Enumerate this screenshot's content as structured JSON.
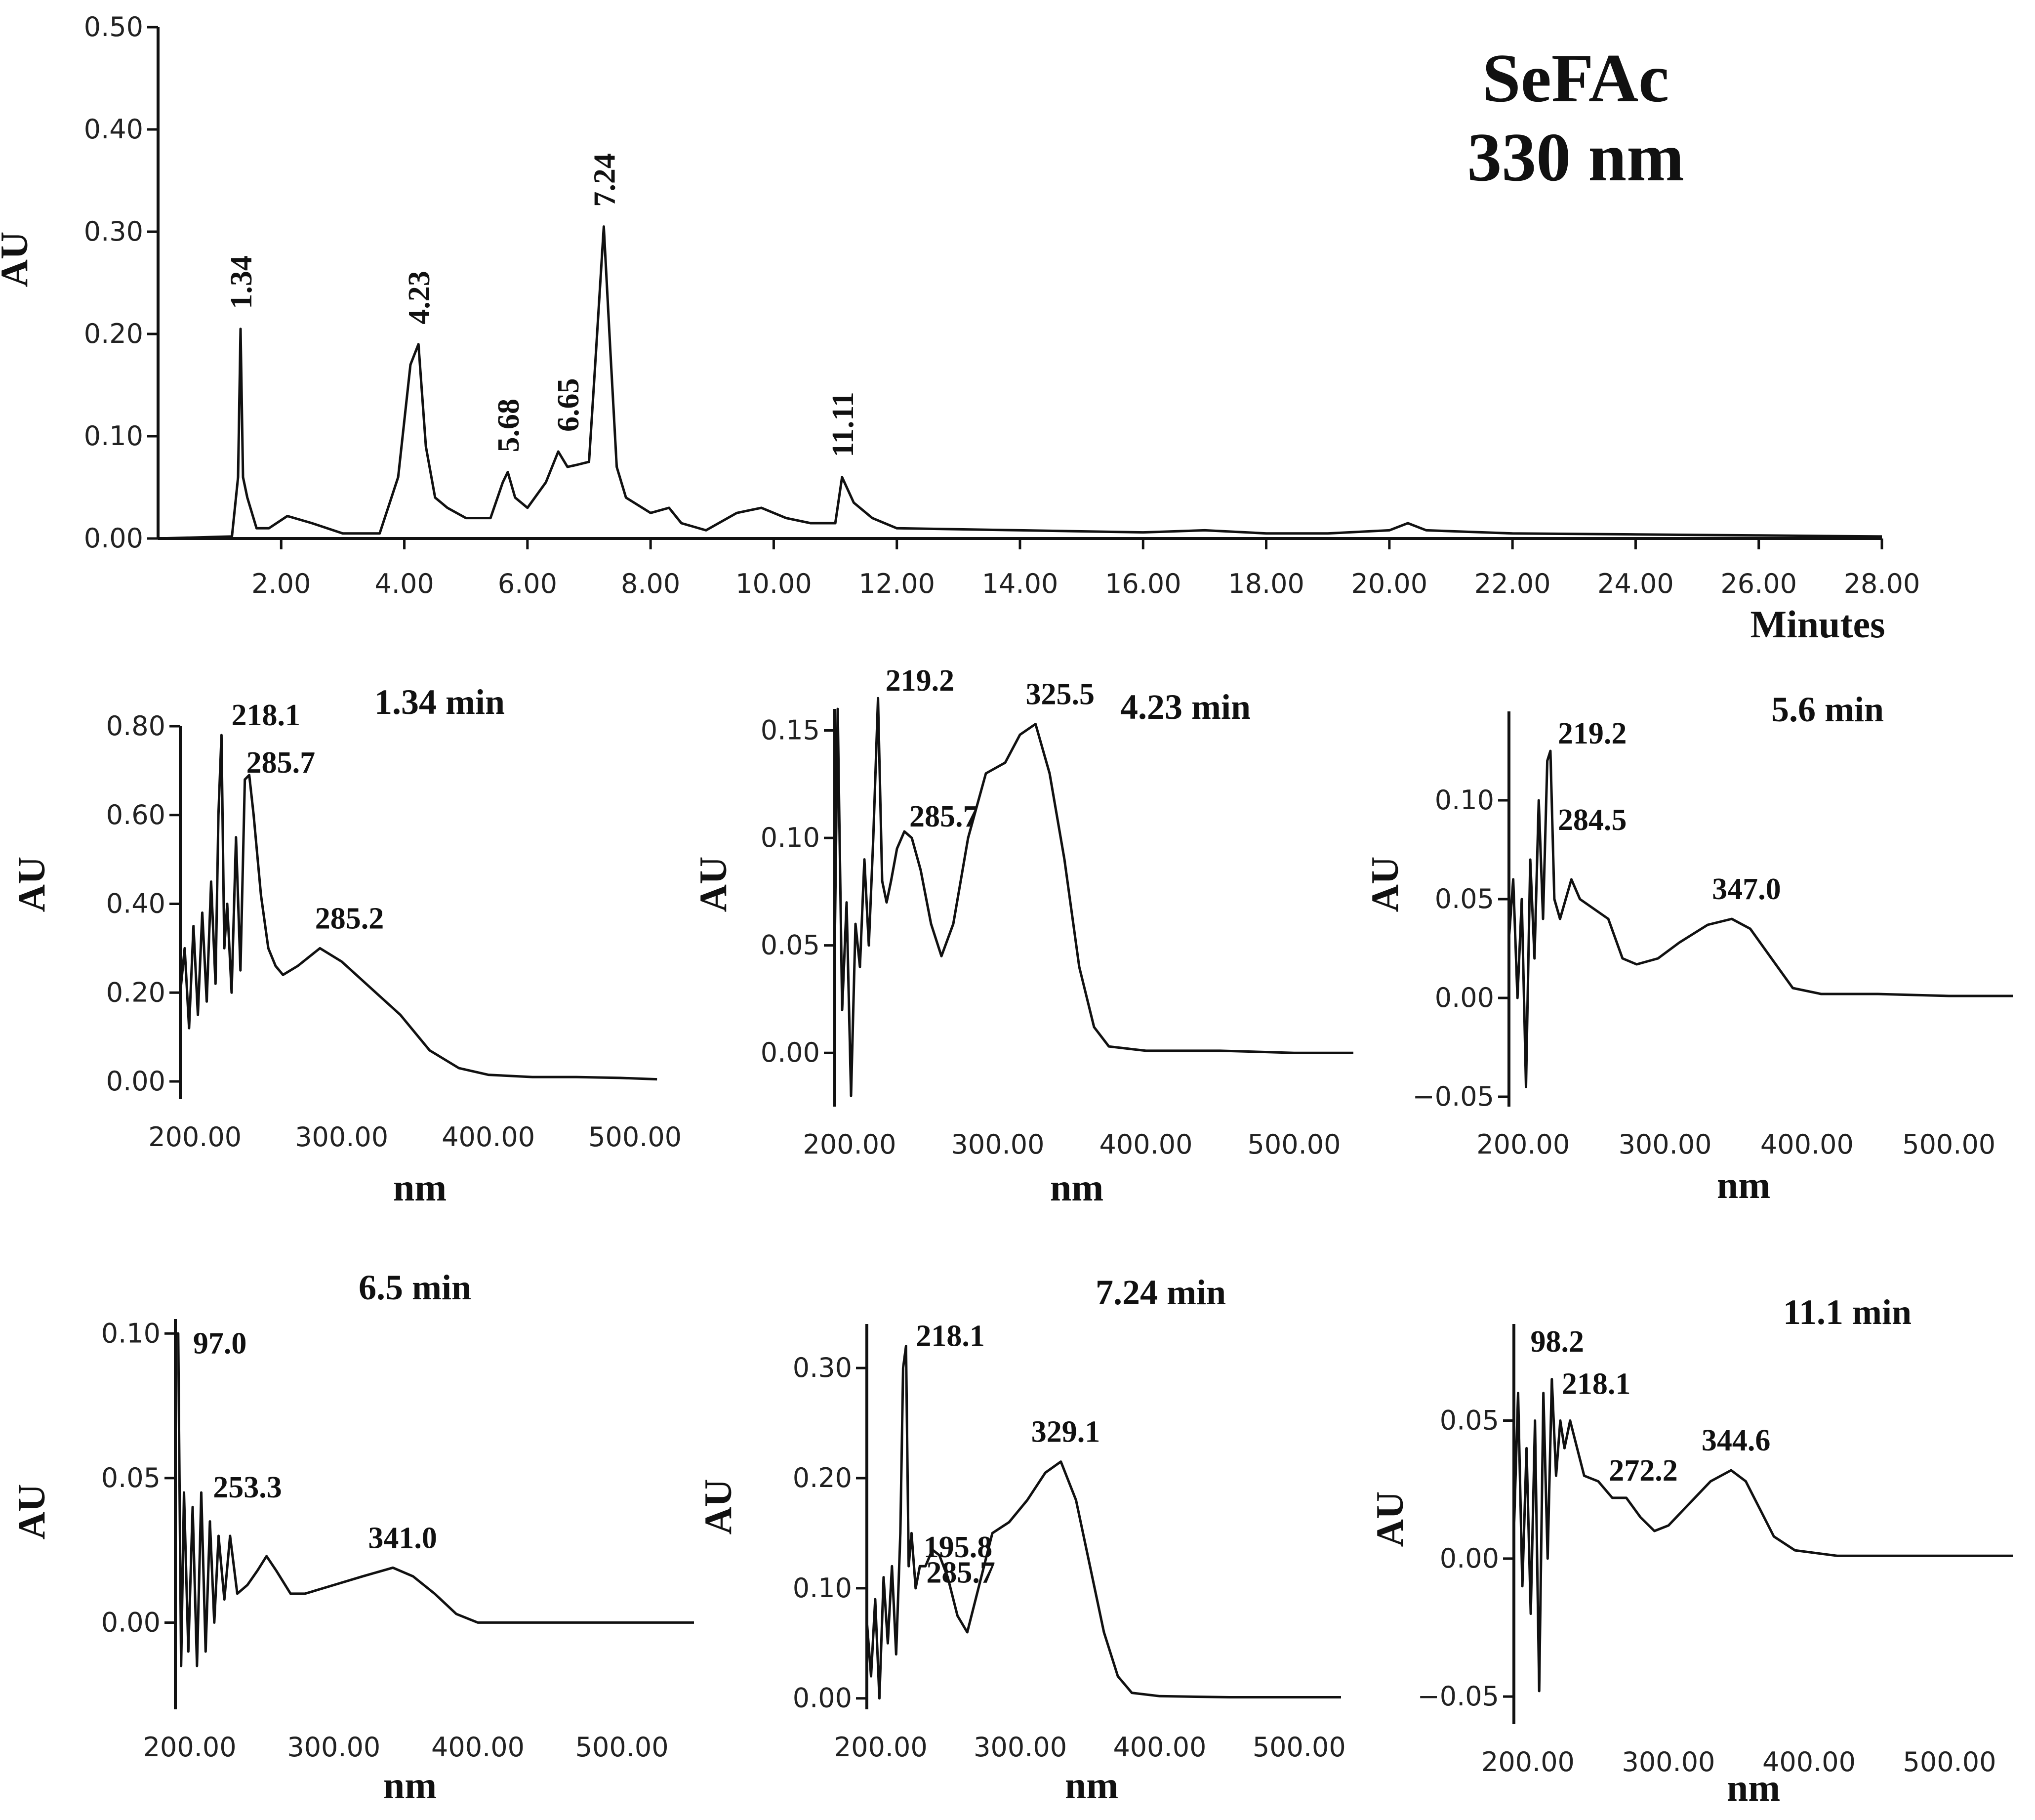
{
  "chart_data": [
    {
      "id": "chromatogram",
      "type": "line",
      "title": "SeFAc",
      "subtitle": "330 nm",
      "xlabel": "Minutes",
      "ylabel": "AU",
      "xlim": [
        0,
        28
      ],
      "ylim": [
        0,
        0.5
      ],
      "x_ticks": [
        2,
        4,
        6,
        8,
        10,
        12,
        14,
        16,
        18,
        20,
        22,
        24,
        26,
        28
      ],
      "x_tick_labels": [
        "2.00",
        "4.00",
        "6.00",
        "8.00",
        "10.00",
        "12.00",
        "14.00",
        "16.00",
        "18.00",
        "20.00",
        "22.00",
        "24.00",
        "26.00",
        "28.00"
      ],
      "y_ticks": [
        0,
        0.1,
        0.2,
        0.3,
        0.4,
        0.5
      ],
      "y_tick_labels": [
        "0.00",
        "0.10",
        "0.20",
        "0.30",
        "0.40",
        "0.50"
      ],
      "x": [
        0,
        1.2,
        1.3,
        1.34,
        1.38,
        1.45,
        1.6,
        1.8,
        2.1,
        2.5,
        3.0,
        3.6,
        3.9,
        4.1,
        4.23,
        4.35,
        4.5,
        4.7,
        5.0,
        5.4,
        5.6,
        5.68,
        5.8,
        6.0,
        6.3,
        6.5,
        6.65,
        6.8,
        7.0,
        7.1,
        7.24,
        7.35,
        7.45,
        7.6,
        8.0,
        8.3,
        8.5,
        8.9,
        9.4,
        9.8,
        10.2,
        10.6,
        11.0,
        11.11,
        11.3,
        11.6,
        12.0,
        14.0,
        16.0,
        17.0,
        18.0,
        19.0,
        20.0,
        20.3,
        20.6,
        22.0,
        24.0,
        26.0,
        28.0
      ],
      "y": [
        0,
        0.002,
        0.06,
        0.205,
        0.06,
        0.04,
        0.01,
        0.01,
        0.022,
        0.015,
        0.005,
        0.005,
        0.06,
        0.17,
        0.19,
        0.09,
        0.04,
        0.03,
        0.02,
        0.02,
        0.055,
        0.065,
        0.04,
        0.03,
        0.055,
        0.085,
        0.07,
        0.072,
        0.075,
        0.17,
        0.305,
        0.18,
        0.07,
        0.04,
        0.025,
        0.03,
        0.015,
        0.008,
        0.025,
        0.03,
        0.02,
        0.015,
        0.015,
        0.06,
        0.035,
        0.02,
        0.01,
        0.008,
        0.006,
        0.008,
        0.005,
        0.005,
        0.008,
        0.015,
        0.008,
        0.005,
        0.004,
        0.003,
        0.002
      ],
      "peaks": [
        {
          "x": 1.34,
          "y": 0.205,
          "label": "1.34"
        },
        {
          "x": 4.23,
          "y": 0.19,
          "label": "4.23"
        },
        {
          "x": 5.68,
          "y": 0.065,
          "label": "5.68"
        },
        {
          "x": 6.65,
          "y": 0.085,
          "label": "6.65"
        },
        {
          "x": 7.24,
          "y": 0.305,
          "label": "7.24"
        },
        {
          "x": 11.11,
          "y": 0.06,
          "label": "11.11"
        }
      ]
    },
    {
      "id": "spectrum-1-34",
      "type": "line",
      "title": "1.34 min",
      "xlabel": "nm",
      "ylabel": "AU",
      "xlim": [
        190,
        520
      ],
      "ylim": [
        -0.04,
        0.8
      ],
      "x_ticks": [
        200,
        300,
        400,
        500
      ],
      "x_tick_labels": [
        "200.00",
        "300.00",
        "400.00",
        "500.00"
      ],
      "y_ticks": [
        0,
        0.2,
        0.4,
        0.6,
        0.8
      ],
      "y_tick_labels": [
        "0.00",
        "0.20",
        "0.40",
        "0.60",
        "0.80"
      ],
      "x": [
        190,
        193,
        196,
        199,
        202,
        205,
        208,
        211,
        214,
        216,
        218.1,
        220,
        222,
        225,
        228,
        231,
        234,
        237,
        240,
        245,
        250,
        255,
        260,
        270,
        285.2,
        300,
        320,
        340,
        360,
        380,
        400,
        430,
        460,
        490,
        515
      ],
      "y": [
        0.2,
        0.3,
        0.12,
        0.35,
        0.15,
        0.38,
        0.18,
        0.45,
        0.22,
        0.6,
        0.78,
        0.3,
        0.4,
        0.2,
        0.55,
        0.25,
        0.68,
        0.69,
        0.6,
        0.42,
        0.3,
        0.26,
        0.24,
        0.26,
        0.3,
        0.27,
        0.21,
        0.15,
        0.07,
        0.03,
        0.015,
        0.01,
        0.01,
        0.008,
        0.005
      ],
      "annotations": [
        {
          "x": 218.1,
          "y": 0.78,
          "label": "218.1"
        },
        {
          "x": 235,
          "y": 0.69,
          "label": "285.7"
        },
        {
          "x": 285.2,
          "y": 0.3,
          "label": "285.2"
        }
      ]
    },
    {
      "id": "spectrum-4-23",
      "type": "line",
      "title": "4.23 min",
      "xlabel": "nm",
      "ylabel": "AU",
      "xlim": [
        190,
        540
      ],
      "ylim": [
        -0.025,
        0.16
      ],
      "x_ticks": [
        200,
        300,
        400,
        500
      ],
      "x_tick_labels": [
        "200.00",
        "300.00",
        "400.00",
        "500.00"
      ],
      "y_ticks": [
        0,
        0.05,
        0.1,
        0.15
      ],
      "y_tick_labels": [
        "0.00",
        "0.05",
        "0.10",
        "0.15"
      ],
      "x": [
        190,
        192,
        195,
        198,
        201,
        204,
        207,
        210,
        213,
        216,
        219.2,
        222,
        225,
        228,
        232,
        237,
        242,
        248,
        255,
        262,
        270,
        280,
        292,
        305,
        315,
        325.5,
        335,
        345,
        355,
        365,
        375,
        400,
        450,
        500,
        540
      ],
      "y": [
        0.05,
        0.16,
        0.02,
        0.07,
        -0.02,
        0.06,
        0.04,
        0.09,
        0.05,
        0.1,
        0.165,
        0.08,
        0.07,
        0.08,
        0.095,
        0.103,
        0.1,
        0.085,
        0.06,
        0.045,
        0.06,
        0.1,
        0.13,
        0.135,
        0.148,
        0.153,
        0.13,
        0.09,
        0.04,
        0.012,
        0.003,
        0.001,
        0.001,
        0.0,
        0.0
      ],
      "annotations": [
        {
          "x": 219.2,
          "y": 0.165,
          "label": "219.2"
        },
        {
          "x": 237,
          "y": 0.103,
          "label": "285.7"
        },
        {
          "x": 325.5,
          "y": 0.153,
          "label": "325.5"
        }
      ]
    },
    {
      "id": "spectrum-5-6",
      "type": "line",
      "title": "5.6  min",
      "xlabel": "nm",
      "ylabel": "AU",
      "xlim": [
        190,
        545
      ],
      "ylim": [
        -0.055,
        0.145
      ],
      "x_ticks": [
        200,
        300,
        400,
        500
      ],
      "x_tick_labels": [
        "200.00",
        "300.00",
        "400.00",
        "500.00"
      ],
      "y_ticks": [
        -0.05,
        0,
        0.05,
        0.1
      ],
      "y_tick_labels": [
        "−0.05",
        "0.00",
        "0.05",
        "0.10"
      ],
      "x": [
        190,
        193,
        196,
        199,
        202,
        205,
        208,
        211,
        214,
        217,
        219.2,
        222,
        226,
        230,
        234,
        240,
        250,
        260,
        270,
        280,
        295,
        310,
        330,
        347,
        360,
        375,
        390,
        410,
        450,
        500,
        545
      ],
      "y": [
        0.03,
        0.06,
        0.0,
        0.05,
        -0.045,
        0.07,
        0.02,
        0.1,
        0.04,
        0.12,
        0.125,
        0.05,
        0.04,
        0.05,
        0.06,
        0.05,
        0.045,
        0.04,
        0.02,
        0.017,
        0.02,
        0.028,
        0.037,
        0.04,
        0.035,
        0.02,
        0.005,
        0.002,
        0.002,
        0.001,
        0.001
      ],
      "annotations": [
        {
          "x": 219.2,
          "y": 0.125,
          "label": "219.2"
        },
        {
          "x": 219.2,
          "y": 0.11,
          "label": "284.5"
        },
        {
          "x": 347,
          "y": 0.04,
          "label": "347.0"
        }
      ]
    },
    {
      "id": "spectrum-6-5",
      "type": "line",
      "title": "6.5  min",
      "xlabel": "nm",
      "ylabel": "AU",
      "xlim": [
        190,
        550
      ],
      "ylim": [
        -0.03,
        0.105
      ],
      "x_ticks": [
        200,
        300,
        400,
        500
      ],
      "x_tick_labels": [
        "200.00",
        "300.00",
        "400.00",
        "500.00"
      ],
      "y_ticks": [
        0,
        0.05,
        0.1
      ],
      "y_tick_labels": [
        "0.00",
        "0.05",
        "0.10"
      ],
      "x": [
        190,
        192,
        194,
        196,
        199,
        202,
        205,
        208,
        211,
        214,
        217,
        220,
        224,
        228,
        233,
        240,
        247,
        253.3,
        260,
        270,
        280,
        300,
        320,
        341,
        355,
        370,
        385,
        400,
        450,
        500,
        550
      ],
      "y": [
        0.1,
        0.1,
        -0.015,
        0.045,
        -0.01,
        0.04,
        -0.015,
        0.045,
        -0.01,
        0.035,
        0.0,
        0.03,
        0.008,
        0.03,
        0.01,
        0.013,
        0.018,
        0.023,
        0.018,
        0.01,
        0.01,
        0.013,
        0.016,
        0.019,
        0.016,
        0.01,
        0.003,
        0.0,
        0.0,
        0.0,
        0.0
      ],
      "annotations": [
        {
          "x": 192,
          "y": 0.1,
          "label": "97.0"
        },
        {
          "x": 211,
          "y": 0.045,
          "label": "253.3"
        },
        {
          "x": 341,
          "y": 0.019,
          "label": "341.0"
        }
      ]
    },
    {
      "id": "spectrum-7-24",
      "type": "line",
      "title": "7.24 min",
      "xlabel": "nm",
      "ylabel": "AU",
      "xlim": [
        190,
        530
      ],
      "ylim": [
        -0.01,
        0.34
      ],
      "x_ticks": [
        200,
        300,
        400,
        500
      ],
      "x_tick_labels": [
        "200.00",
        "300.00",
        "400.00",
        "500.00"
      ],
      "y_ticks": [
        0,
        0.1,
        0.2,
        0.3
      ],
      "y_tick_labels": [
        "0.00",
        "0.10",
        "0.20",
        "0.30"
      ],
      "x": [
        190,
        193,
        196,
        199,
        202,
        205,
        208,
        211,
        214,
        216,
        218.1,
        220,
        222,
        225,
        228,
        232,
        237,
        242,
        248,
        255,
        262,
        270,
        280,
        292,
        305,
        318,
        329.1,
        340,
        350,
        360,
        370,
        380,
        400,
        450,
        500,
        530
      ],
      "y": [
        0.07,
        0.02,
        0.09,
        0.0,
        0.11,
        0.05,
        0.12,
        0.04,
        0.15,
        0.3,
        0.32,
        0.12,
        0.15,
        0.1,
        0.12,
        0.12,
        0.135,
        0.13,
        0.11,
        0.075,
        0.06,
        0.1,
        0.15,
        0.16,
        0.18,
        0.205,
        0.215,
        0.18,
        0.12,
        0.06,
        0.02,
        0.005,
        0.002,
        0.001,
        0.001,
        0.001
      ],
      "annotations": [
        {
          "x": 218.1,
          "y": 0.32,
          "label": "218.1"
        },
        {
          "x": 220,
          "y": 0.2,
          "label": "195.8"
        },
        {
          "x": 222,
          "y": 0.15,
          "label": "285.7"
        },
        {
          "x": 329.1,
          "y": 0.215,
          "label": "329.1"
        }
      ]
    },
    {
      "id": "spectrum-11-1",
      "type": "line",
      "title": "11.1 min",
      "xlabel": "nm",
      "ylabel": "AU",
      "xlim": [
        190,
        545
      ],
      "ylim": [
        -0.06,
        0.085
      ],
      "x_ticks": [
        200,
        300,
        400,
        500
      ],
      "x_tick_labels": [
        "200.00",
        "300.00",
        "400.00",
        "500.00"
      ],
      "y_ticks": [
        -0.05,
        0,
        0.05
      ],
      "y_tick_labels": [
        "−0.05",
        "0.00",
        "0.05"
      ],
      "x": [
        190,
        193,
        196,
        199,
        202,
        205,
        208,
        211,
        214,
        217,
        220,
        223,
        226,
        230,
        235,
        240,
        250,
        260,
        270,
        280,
        290,
        300,
        315,
        330,
        344.6,
        355,
        365,
        375,
        390,
        420,
        460,
        500,
        545
      ],
      "y": [
        0.01,
        0.06,
        -0.01,
        0.04,
        -0.02,
        0.05,
        -0.048,
        0.06,
        0.0,
        0.065,
        0.03,
        0.05,
        0.04,
        0.05,
        0.04,
        0.03,
        0.028,
        0.022,
        0.022,
        0.015,
        0.01,
        0.012,
        0.02,
        0.028,
        0.032,
        0.028,
        0.018,
        0.008,
        0.003,
        0.001,
        0.001,
        0.001,
        0.001
      ],
      "annotations": [
        {
          "x": 193,
          "y": 0.075,
          "label": "98.2"
        },
        {
          "x": 217,
          "y": 0.065,
          "label": "218.1"
        },
        {
          "x": 240,
          "y": 0.03,
          "label": "272.2"
        },
        {
          "x": 344.6,
          "y": 0.032,
          "label": "344.6"
        }
      ]
    }
  ]
}
